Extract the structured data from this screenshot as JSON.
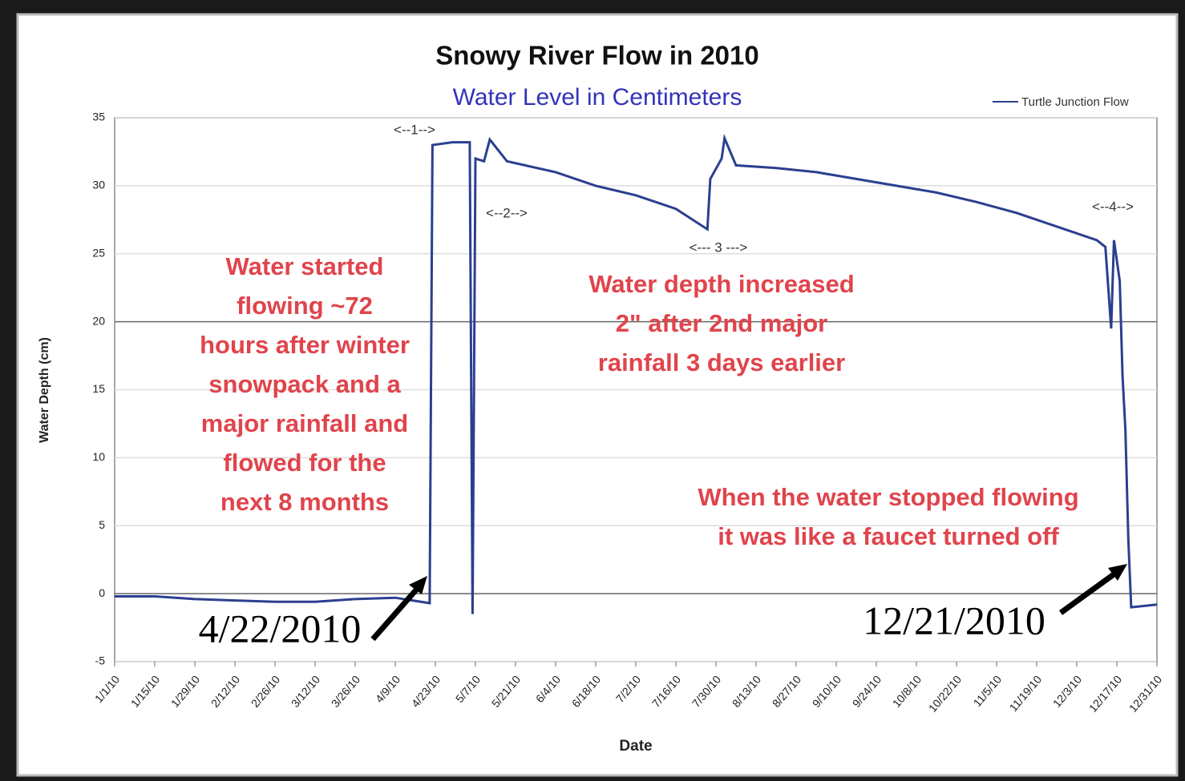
{
  "chart_data": {
    "type": "line",
    "title": "Snowy River Flow in 2010",
    "subtitle": "Water Level in Centimeters",
    "x_label": "Date",
    "y_label": "Water Depth (cm)",
    "legend": "top right",
    "grid": true,
    "xlim": [
      "2010-01-01",
      "2010-12-31"
    ],
    "xticks": [
      {
        "value": "2010-01-01",
        "label": "1/1/10"
      },
      {
        "value": "2010-01-15",
        "label": "1/15/10"
      },
      {
        "value": "2010-01-29",
        "label": "1/29/10"
      },
      {
        "value": "2010-02-12",
        "label": "2/12/10"
      },
      {
        "value": "2010-02-26",
        "label": "2/26/10"
      },
      {
        "value": "2010-03-12",
        "label": "3/12/10"
      },
      {
        "value": "2010-03-26",
        "label": "3/26/10"
      },
      {
        "value": "2010-04-09",
        "label": "4/9/10"
      },
      {
        "value": "2010-04-23",
        "label": "4/23/10"
      },
      {
        "value": "2010-05-07",
        "label": "5/7/10"
      },
      {
        "value": "2010-05-21",
        "label": "5/21/10"
      },
      {
        "value": "2010-06-04",
        "label": "6/4/10"
      },
      {
        "value": "2010-06-18",
        "label": "6/18/10"
      },
      {
        "value": "2010-07-02",
        "label": "7/2/10"
      },
      {
        "value": "2010-07-16",
        "label": "7/16/10"
      },
      {
        "value": "2010-07-30",
        "label": "7/30/10"
      },
      {
        "value": "2010-08-13",
        "label": "8/13/10"
      },
      {
        "value": "2010-08-27",
        "label": "8/27/10"
      },
      {
        "value": "2010-09-10",
        "label": "9/10/10"
      },
      {
        "value": "2010-09-24",
        "label": "9/24/10"
      },
      {
        "value": "2010-10-08",
        "label": "10/8/10"
      },
      {
        "value": "2010-10-22",
        "label": "10/22/10"
      },
      {
        "value": "2010-11-05",
        "label": "11/5/10"
      },
      {
        "value": "2010-11-19",
        "label": "11/19/10"
      },
      {
        "value": "2010-12-03",
        "label": "12/3/10"
      },
      {
        "value": "2010-12-17",
        "label": "12/17/10"
      },
      {
        "value": "2010-12-31",
        "label": "12/31/10"
      }
    ],
    "ylim": [
      -5,
      35
    ],
    "yticks": [
      -5,
      0,
      5,
      10,
      15,
      20,
      25,
      30,
      35
    ],
    "x": [
      "2010-01-01",
      "2010-01-15",
      "2010-01-29",
      "2010-02-12",
      "2010-02-26",
      "2010-03-12",
      "2010-03-26",
      "2010-04-09",
      "2010-04-21",
      "2010-04-22",
      "2010-04-29",
      "2010-05-05",
      "2010-05-06",
      "2010-05-07",
      "2010-05-10",
      "2010-05-12",
      "2010-05-18",
      "2010-06-04",
      "2010-06-18",
      "2010-07-02",
      "2010-07-16",
      "2010-07-27",
      "2010-07-28",
      "2010-08-01",
      "2010-08-02",
      "2010-08-06",
      "2010-08-20",
      "2010-09-03",
      "2010-09-17",
      "2010-10-01",
      "2010-10-15",
      "2010-10-29",
      "2010-11-12",
      "2010-11-26",
      "2010-12-10",
      "2010-12-13",
      "2010-12-15",
      "2010-12-16",
      "2010-12-18",
      "2010-12-19",
      "2010-12-20",
      "2010-12-21",
      "2010-12-22",
      "2010-12-31"
    ],
    "series": [
      {
        "name": "Turtle Junction Flow",
        "color": "#2b3f8f",
        "values": [
          -0.2,
          -0.2,
          -0.4,
          -0.5,
          -0.6,
          -0.6,
          -0.4,
          -0.3,
          -0.7,
          33,
          33.2,
          33.2,
          -1.5,
          32,
          31.8,
          33.4,
          31.8,
          31,
          30,
          29.3,
          28.3,
          26.8,
          30.5,
          32,
          33.5,
          31.5,
          31.3,
          31,
          30.5,
          30,
          29.5,
          28.8,
          28,
          27,
          26,
          25.5,
          19.5,
          26,
          23,
          16,
          12,
          4,
          -1,
          -0.8
        ]
      }
    ],
    "annotations": [
      {
        "lines": [
          "Water started",
          "flowing ~72",
          "hours after winter",
          "snowpack and a",
          "major rainfall and",
          "flowed for the",
          "next 8 months"
        ]
      },
      {
        "lines": [
          "Water depth increased",
          "2\" after 2nd major",
          "rainfall 3 days earlier"
        ]
      },
      {
        "lines": [
          "When the water stopped flowing",
          "it was like a faucet turned off"
        ]
      }
    ],
    "markers": [
      "<--1-->",
      "<--2-->",
      "<--- 3 --->",
      "<--4-->"
    ],
    "date_callouts": [
      "4/22/2010",
      "12/21/2010"
    ]
  }
}
